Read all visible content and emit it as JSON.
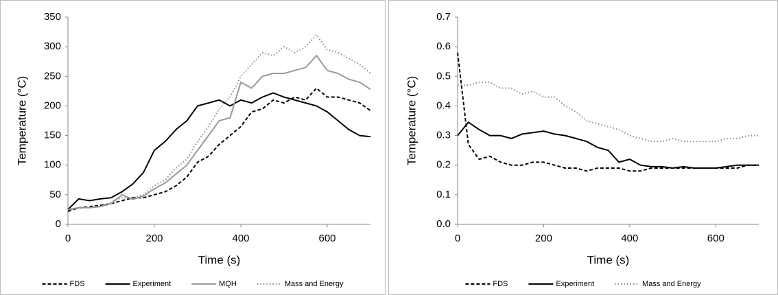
{
  "chart_data": [
    {
      "type": "line",
      "xlabel": "Time (s)",
      "ylabel": "Temperature (°C)",
      "x": [
        0,
        25,
        50,
        75,
        100,
        125,
        150,
        175,
        200,
        225,
        250,
        275,
        300,
        325,
        350,
        375,
        400,
        425,
        450,
        475,
        500,
        525,
        550,
        575,
        600,
        625,
        650,
        675,
        700
      ],
      "xlim": [
        0,
        700
      ],
      "xticks": [
        0,
        200,
        400,
        600
      ],
      "ylim": [
        0,
        350
      ],
      "yticks": [
        0,
        50,
        100,
        150,
        200,
        250,
        300,
        350
      ],
      "series": [
        {
          "name": "FDS",
          "color": "#000000",
          "style": "dashed",
          "values": [
            22,
            28,
            30,
            32,
            35,
            40,
            45,
            45,
            50,
            55,
            65,
            80,
            105,
            115,
            135,
            150,
            165,
            190,
            195,
            210,
            205,
            215,
            210,
            230,
            215,
            215,
            210,
            205,
            192
          ]
        },
        {
          "name": "Experiment",
          "color": "#000000",
          "style": "solid",
          "values": [
            25,
            43,
            40,
            43,
            45,
            55,
            68,
            88,
            125,
            140,
            160,
            175,
            200,
            205,
            210,
            200,
            210,
            205,
            215,
            222,
            215,
            210,
            205,
            200,
            190,
            175,
            160,
            150,
            148
          ]
        },
        {
          "name": "MQH",
          "color": "#9a9a9a",
          "style": "solid",
          "values": [
            25,
            28,
            28,
            30,
            35,
            50,
            42,
            48,
            60,
            70,
            85,
            100,
            125,
            150,
            175,
            180,
            240,
            230,
            250,
            255,
            255,
            260,
            265,
            285,
            260,
            255,
            245,
            240,
            228
          ]
        },
        {
          "name": "Mass and Energy",
          "color": "#8a8a8a",
          "style": "dotted",
          "values": [
            25,
            27,
            30,
            30,
            38,
            45,
            45,
            50,
            65,
            75,
            95,
            110,
            140,
            165,
            195,
            215,
            250,
            270,
            290,
            285,
            300,
            290,
            300,
            320,
            295,
            290,
            280,
            270,
            255
          ]
        }
      ]
    },
    {
      "type": "line",
      "xlabel": "Time (s)",
      "ylabel": "Temperature (°C)",
      "x": [
        0,
        25,
        50,
        75,
        100,
        125,
        150,
        175,
        200,
        225,
        250,
        275,
        300,
        325,
        350,
        375,
        400,
        425,
        450,
        475,
        500,
        525,
        550,
        575,
        600,
        625,
        650,
        675,
        700
      ],
      "xlim": [
        0,
        700
      ],
      "xticks": [
        0,
        200,
        400,
        600
      ],
      "ylim": [
        0,
        0.7
      ],
      "yticks": [
        {
          "value": 0,
          "label": "0.0"
        },
        0.1,
        0.2,
        0.3,
        0.4,
        0.5,
        0.6,
        0.7
      ],
      "series": [
        {
          "name": "FDS",
          "color": "#000000",
          "style": "dashed",
          "values": [
            0.58,
            0.27,
            0.22,
            0.23,
            0.21,
            0.2,
            0.2,
            0.21,
            0.21,
            0.2,
            0.19,
            0.19,
            0.18,
            0.19,
            0.19,
            0.19,
            0.18,
            0.18,
            0.19,
            0.19,
            0.19,
            0.19,
            0.19,
            0.19,
            0.19,
            0.19,
            0.19,
            0.2,
            0.2
          ]
        },
        {
          "name": "Experiment",
          "color": "#000000",
          "style": "solid",
          "values": [
            0.3,
            0.345,
            0.32,
            0.3,
            0.3,
            0.29,
            0.305,
            0.31,
            0.315,
            0.305,
            0.3,
            0.29,
            0.28,
            0.26,
            0.25,
            0.21,
            0.22,
            0.2,
            0.195,
            0.195,
            0.19,
            0.195,
            0.19,
            0.19,
            0.19,
            0.195,
            0.2,
            0.2,
            0.2
          ]
        },
        {
          "name": "Mass and Energy",
          "color": "#8a8a8a",
          "style": "dotted",
          "values": [
            0.47,
            0.47,
            0.48,
            0.48,
            0.46,
            0.46,
            0.44,
            0.45,
            0.43,
            0.43,
            0.4,
            0.38,
            0.35,
            0.34,
            0.33,
            0.32,
            0.3,
            0.29,
            0.28,
            0.28,
            0.29,
            0.28,
            0.28,
            0.28,
            0.28,
            0.29,
            0.29,
            0.3,
            0.3
          ]
        }
      ]
    }
  ]
}
